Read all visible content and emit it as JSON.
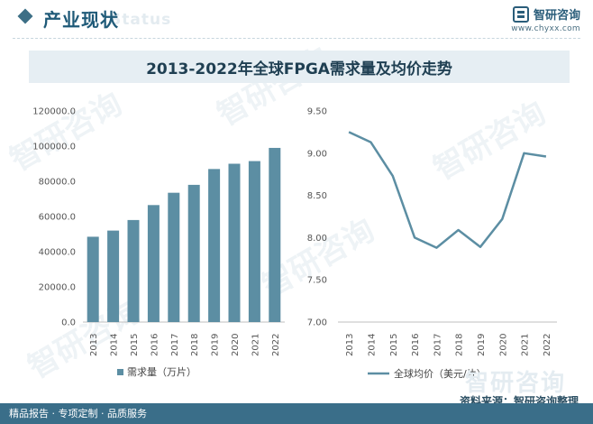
{
  "header": {
    "section_title": "产业现状",
    "section_watermark": "Status",
    "logo_name": "智研咨询",
    "logo_url": "www.chyxx.com"
  },
  "watermark_text": "智研咨询",
  "chart_data": [
    {
      "type": "bar",
      "title": "2013-2022年全球FPGA需求量及均价走势",
      "categories": [
        "2013",
        "2014",
        "2015",
        "2016",
        "2017",
        "2018",
        "2019",
        "2020",
        "2021",
        "2022"
      ],
      "series": [
        {
          "name": "需求量（万片）",
          "values": [
            48500,
            52000,
            58000,
            66500,
            73500,
            78000,
            87000,
            90000,
            91500,
            99000
          ]
        }
      ],
      "ylim": [
        0,
        120000
      ],
      "yticks": [
        "0.0",
        "20000.0",
        "40000.0",
        "60000.0",
        "80000.0",
        "100000.0",
        "120000.0"
      ],
      "ytick_values": [
        0,
        20000,
        40000,
        60000,
        80000,
        100000,
        120000
      ],
      "xlabel": "",
      "ylabel": "",
      "grid": false,
      "legend_position": "bottom",
      "color": "#5c8ea3"
    },
    {
      "type": "line",
      "categories": [
        "2013",
        "2014",
        "2015",
        "2016",
        "2017",
        "2018",
        "2019",
        "2020",
        "2021",
        "2022"
      ],
      "series": [
        {
          "name": "全球均价（美元/片）",
          "values": [
            9.25,
            9.13,
            8.73,
            8.0,
            7.88,
            8.09,
            7.89,
            8.22,
            9.0,
            8.96
          ]
        }
      ],
      "ylim": [
        7.0,
        9.5
      ],
      "yticks": [
        "7.00",
        "7.50",
        "8.00",
        "8.50",
        "9.00",
        "9.50"
      ],
      "ytick_values": [
        7.0,
        7.5,
        8.0,
        8.5,
        9.0,
        9.5
      ],
      "xlabel": "",
      "ylabel": "",
      "grid": false,
      "legend_position": "bottom",
      "color": "#5c8ea3"
    }
  ],
  "footer": {
    "left": "精品报告 · 专项定制 · 品质服务",
    "right": "资料来源：智研咨询整理",
    "watermark": "智研咨询"
  }
}
